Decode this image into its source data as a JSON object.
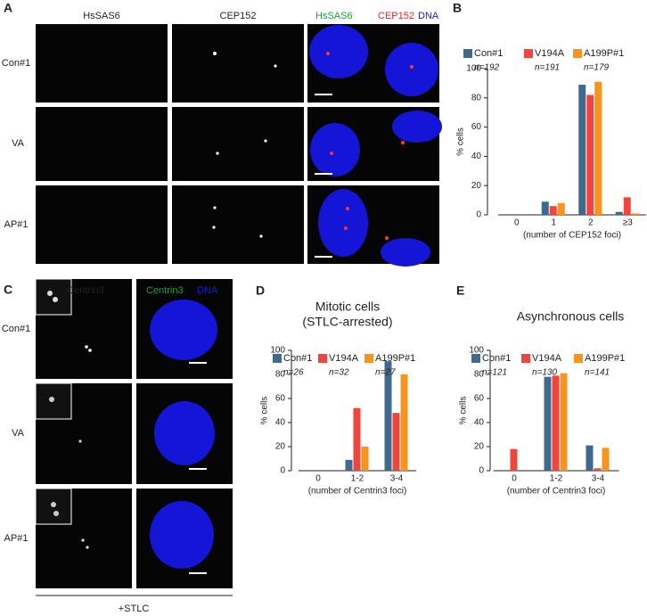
{
  "panels": {
    "A": {
      "label": "A",
      "columns": [
        "HsSAS6",
        "CEP152"
      ],
      "merge": [
        "HsSAS6",
        "CEP152",
        "DNA"
      ],
      "rows": [
        "Con#1",
        "VA",
        "AP#1"
      ]
    },
    "C": {
      "label": "C",
      "columns": [
        "Centrin3"
      ],
      "merge": [
        "Centrin3",
        "DNA"
      ],
      "rows": [
        "Con#1",
        "VA",
        "AP#1"
      ],
      "footer": "+STLC"
    }
  },
  "chart_data": [
    {
      "type": "bar",
      "panel_label": "B",
      "x_label": "(number of CEP152 foci)",
      "y_label": "% cells",
      "categories": [
        "0",
        "1",
        "2",
        "≥3"
      ],
      "series": [
        {
          "name": "Con#1",
          "n_label": "n=192",
          "color": "#3f6a8e",
          "values": [
            0,
            9,
            89,
            2
          ]
        },
        {
          "name": "V194A",
          "n_label": "n=191",
          "color": "#f2443d",
          "values": [
            0,
            6,
            82,
            12
          ]
        },
        {
          "name": "A199P#1",
          "n_label": "n=179",
          "color": "#f7941f",
          "values": [
            0,
            8,
            91,
            1
          ]
        }
      ],
      "ylim": [
        0,
        100
      ],
      "yticks": [
        0,
        20,
        40,
        60,
        80,
        100
      ]
    },
    {
      "type": "bar",
      "panel_label": "D",
      "title": "Mitotic cells",
      "subtitle": "(STLC-arrested)",
      "x_label": "(number of Centrin3 foci)",
      "y_label": "% cells",
      "categories": [
        "0",
        "1-2",
        "3-4"
      ],
      "series": [
        {
          "name": "Con#1",
          "n_label": "n=26",
          "color": "#3f6a8e",
          "values": [
            0,
            9,
            91
          ]
        },
        {
          "name": "V194A",
          "n_label": "n=32",
          "color": "#f2443d",
          "values": [
            0,
            52,
            48
          ]
        },
        {
          "name": "A199P#1",
          "n_label": "n=27",
          "color": "#f7941f",
          "values": [
            0,
            20,
            80
          ]
        }
      ],
      "ylim": [
        0,
        100
      ],
      "yticks": [
        0,
        20,
        40,
        60,
        80,
        100
      ]
    },
    {
      "type": "bar",
      "panel_label": "E",
      "title": "Asynchronous cells",
      "x_label": "(number of Centrin3 foci)",
      "y_label": "% cells",
      "categories": [
        "0",
        "1-2",
        "3-4"
      ],
      "series": [
        {
          "name": "Con#1",
          "n_label": "n=121",
          "color": "#3f6a8e",
          "values": [
            0,
            78,
            21
          ]
        },
        {
          "name": "V194A",
          "n_label": "n=130",
          "color": "#f2443d",
          "values": [
            18,
            79,
            2
          ]
        },
        {
          "name": "A199P#1",
          "n_label": "n=141",
          "color": "#f7941f",
          "values": [
            0,
            81,
            19
          ]
        }
      ],
      "ylim": [
        0,
        100
      ],
      "yticks": [
        0,
        20,
        40,
        60,
        80,
        100
      ]
    }
  ]
}
